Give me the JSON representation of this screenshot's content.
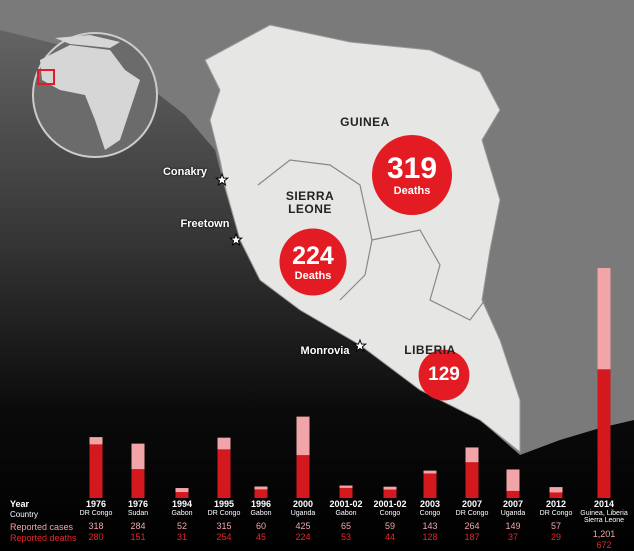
{
  "map": {
    "countries": [
      "GUINEA",
      "SIERRA LEONE",
      "LIBERIA"
    ],
    "cities": [
      "Conakry",
      "Freetown",
      "Monrovia"
    ],
    "bubbles": [
      {
        "value": 319,
        "label": "Deaths"
      },
      {
        "value": 224,
        "label": "Deaths"
      },
      {
        "value": 129
      }
    ]
  },
  "chart_data": {
    "type": "bar",
    "year_header": "Year",
    "country_header": "Country",
    "categories": [
      "1976",
      "1976",
      "1994",
      "1995",
      "1996",
      "2000",
      "2001-02",
      "2001-02",
      "2003",
      "2007",
      "2007",
      "2012",
      "2014"
    ],
    "countries": [
      "DR Congo",
      "Sudan",
      "Gabon",
      "DR Congo",
      "Gabon",
      "Uganda",
      "Gabon",
      "Congo",
      "Congo",
      "DR Congo",
      "Uganda",
      "DR Congo",
      "Guinea, Liberia Sierra Leone"
    ],
    "series": [
      {
        "name": "Reported cases",
        "color": "#f2a5a8",
        "values": [
          318,
          284,
          52,
          315,
          60,
          425,
          65,
          59,
          143,
          264,
          149,
          57,
          1201
        ],
        "value_labels": [
          "318",
          "284",
          "52",
          "315",
          "60",
          "425",
          "65",
          "59",
          "143",
          "264",
          "149",
          "57",
          "1,201"
        ]
      },
      {
        "name": "Reported deaths",
        "color": "#d3181e",
        "values": [
          280,
          151,
          31,
          254,
          45,
          224,
          53,
          44,
          128,
          187,
          37,
          29,
          672
        ]
      }
    ]
  }
}
